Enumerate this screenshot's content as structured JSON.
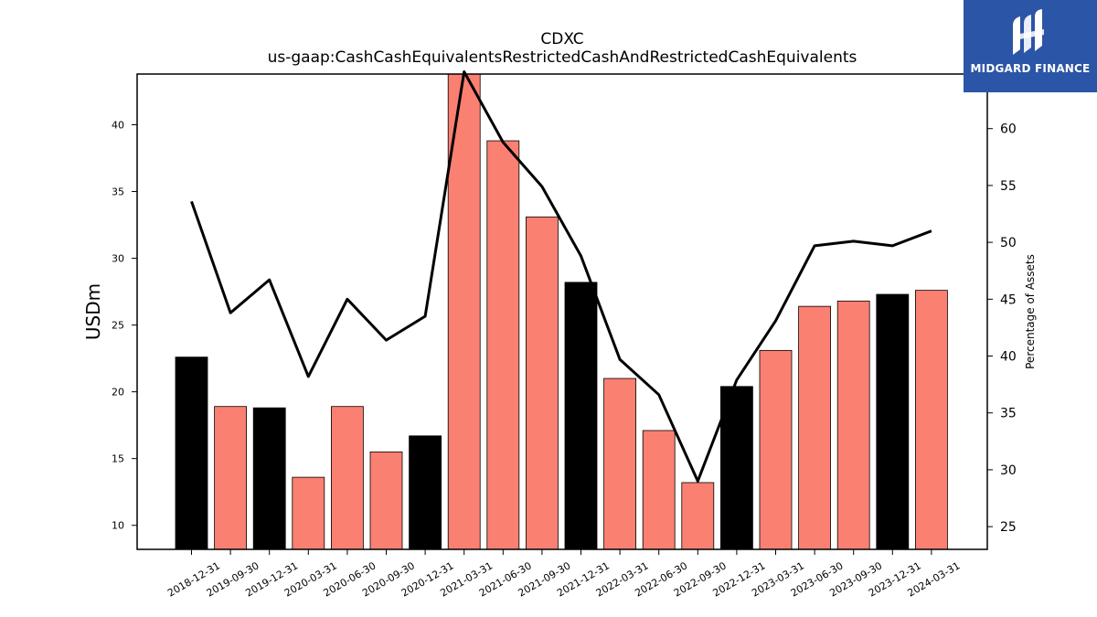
{
  "chart_data": {
    "type": "bar",
    "title": "CDXC",
    "subtitle": "us-gaap:CashCashEquivalentsRestrictedCashAndRestrictedCashEquivalents",
    "ylabel": "USDm",
    "y2label": "Percentage of Assets",
    "categories": [
      "2018-12-31",
      "2019-09-30",
      "2019-12-31",
      "2020-03-31",
      "2020-06-30",
      "2020-09-30",
      "2020-12-31",
      "2021-03-31",
      "2021-06-30",
      "2021-09-30",
      "2021-12-31",
      "2022-03-31",
      "2022-06-30",
      "2022-09-30",
      "2022-12-31",
      "2023-03-31",
      "2023-06-30",
      "2023-09-30",
      "2023-12-31",
      "2024-03-31"
    ],
    "series": [
      {
        "type": "bar",
        "values": [
          22.6,
          18.9,
          18.8,
          13.6,
          18.9,
          15.5,
          16.7,
          44.0,
          38.8,
          33.1,
          28.2,
          21.0,
          17.1,
          13.2,
          20.4,
          23.1,
          26.4,
          26.8,
          27.3,
          27.6
        ],
        "colors": [
          "#000000",
          "#fa8072",
          "#000000",
          "#fa8072",
          "#fa8072",
          "#fa8072",
          "#000000",
          "#fa8072",
          "#fa8072",
          "#fa8072",
          "#000000",
          "#fa8072",
          "#fa8072",
          "#fa8072",
          "#000000",
          "#fa8072",
          "#fa8072",
          "#fa8072",
          "#000000",
          "#fa8072"
        ]
      },
      {
        "type": "line",
        "axis": "right",
        "color": "#000000",
        "values": [
          53.6,
          43.8,
          46.7,
          38.2,
          45.0,
          41.4,
          43.5,
          65.0,
          58.8,
          54.9,
          48.8,
          39.7,
          36.6,
          29.0,
          37.9,
          43.1,
          49.7,
          50.1,
          49.7,
          51.0
        ]
      }
    ],
    "ylim": [
      8.2,
      43.8
    ],
    "y2lim": [
      23.0,
      64.8
    ],
    "yticks": [
      10,
      15,
      20,
      25,
      30,
      35,
      40
    ],
    "y2ticks": [
      25,
      30,
      35,
      40,
      45,
      50,
      55,
      60
    ],
    "grid": false
  },
  "logo": {
    "text": "MIDGARD FINANCE",
    "background": "#2b55a6"
  }
}
